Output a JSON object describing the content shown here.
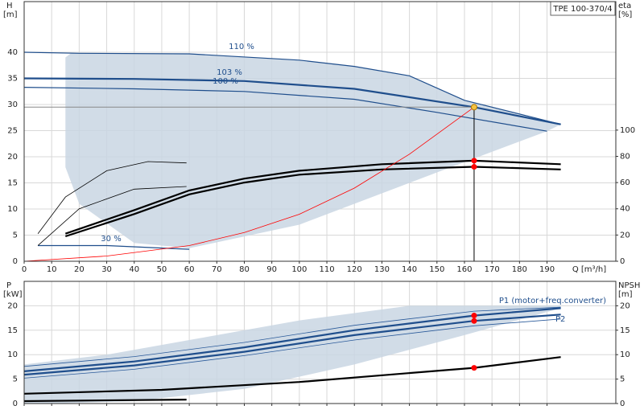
{
  "chart_data": [
    {
      "type": "line",
      "title": "TPE 100-370/4",
      "ylabel": "H",
      "yunit": "[m]",
      "xlabel": "Q [m³/h]",
      "y2label": "eta",
      "y2unit": "[%]",
      "xlim": [
        0,
        215
      ],
      "ylim": [
        0,
        49.7
      ],
      "y2lim": [
        0,
        198
      ],
      "grid": true,
      "duty_guides": true,
      "xticks": [
        0,
        10,
        20,
        30,
        40,
        50,
        60,
        70,
        80,
        90,
        100,
        110,
        120,
        130,
        140,
        150,
        160,
        170,
        180,
        190
      ],
      "yticks": [
        0,
        5,
        10,
        15,
        20,
        25,
        30,
        35,
        40
      ],
      "y2ticks": [
        0,
        20,
        40,
        60,
        80,
        100
      ],
      "series": [
        {
          "fill": true,
          "color": "#c9d6e3",
          "x": [
            17,
            20,
            60,
            100,
            120,
            140,
            160,
            195,
            190,
            150,
            100,
            60,
            40,
            20,
            15,
            15
          ],
          "values": [
            39.8,
            39.8,
            39.7,
            38.5,
            37.3,
            35.5,
            30.8,
            26.2,
            24.9,
            17,
            7,
            2.5,
            3.5,
            11,
            18,
            39
          ]
        },
        {
          "name": "110 %",
          "color": "#1f4e8c",
          "width": 1.2,
          "x": [
            0,
            20,
            60,
            100,
            120,
            140,
            160,
            195
          ],
          "values": [
            40,
            39.8,
            39.7,
            38.5,
            37.3,
            35.5,
            30.8,
            26.2
          ]
        },
        {
          "name": "103 %",
          "color": "#1f4e8c",
          "width": 2.2,
          "x": [
            0,
            40,
            80,
            120,
            163.5,
            195
          ],
          "values": [
            35,
            34.9,
            34.5,
            33,
            29.5,
            26.2
          ]
        },
        {
          "name": "100 %",
          "color": "#1f4e8c",
          "width": 1.2,
          "x": [
            0,
            40,
            80,
            120,
            150,
            190
          ],
          "values": [
            33.3,
            33,
            32.5,
            31,
            28.5,
            24.9
          ]
        },
        {
          "name": "30 %",
          "color": "#1f4e8c",
          "width": 1.2,
          "x": [
            5,
            30,
            60
          ],
          "values": [
            3,
            3,
            2.3
          ]
        },
        {
          "axis": "y2",
          "color": "#000000",
          "width": 2.2,
          "x": [
            15,
            40,
            60,
            80,
            100,
            130,
            163.5,
            195
          ],
          "values": [
            21,
            39,
            54,
            63,
            69,
            74,
            76.7,
            74
          ]
        },
        {
          "axis": "y2",
          "color": "#000000",
          "width": 2.2,
          "x": [
            15,
            40,
            60,
            80,
            100,
            130,
            163.5,
            195
          ],
          "values": [
            19,
            36,
            51,
            60,
            66,
            70,
            72,
            70
          ]
        },
        {
          "axis": "y2",
          "color": "#000000",
          "width": 0.8,
          "x": [
            5,
            15,
            30,
            45,
            59
          ],
          "values": [
            21,
            49,
            69,
            76,
            75
          ]
        },
        {
          "axis": "y2",
          "color": "#000000",
          "width": 0.8,
          "x": [
            5,
            20,
            40,
            59
          ],
          "values": [
            12,
            40,
            55,
            57
          ]
        },
        {
          "color": "#ff0000",
          "width": 0.8,
          "x": [
            0,
            30,
            60,
            80,
            100,
            120,
            140,
            163.5
          ],
          "values": [
            0,
            1,
            3,
            5.5,
            9,
            14,
            20.5,
            29.5
          ]
        }
      ],
      "points": [
        {
          "x": 163.5,
          "y": 29.5,
          "color": "#f5c242"
        },
        {
          "x": 163.5,
          "y": 76.7,
          "axis": "y2",
          "color": "#ff0000"
        },
        {
          "x": 163.5,
          "y": 72,
          "axis": "y2",
          "color": "#ff0000"
        }
      ]
    },
    {
      "type": "line",
      "ylabel": "P",
      "yunit": "[kW]",
      "y2label": "NPSH",
      "y2unit": "[m]",
      "xlim": [
        0,
        215
      ],
      "ylim": [
        0,
        25
      ],
      "y2lim": [
        0,
        25
      ],
      "grid": true,
      "xticks": [
        0,
        10,
        20,
        30,
        40,
        50,
        60,
        70,
        80,
        90,
        100,
        110,
        120,
        130,
        140,
        150,
        160,
        170,
        180,
        190
      ],
      "yticks": [
        0,
        5,
        10,
        15,
        20
      ],
      "y2ticks": [
        0,
        5,
        10,
        15,
        20
      ],
      "series": [
        {
          "fill": true,
          "color": "#c9d6e3",
          "x": [
            0,
            30,
            60,
            100,
            140,
            195,
            195,
            160,
            120,
            80,
            40,
            10,
            0
          ],
          "values": [
            8,
            10,
            13,
            17,
            20,
            20,
            19.5,
            14,
            8,
            3,
            0.5,
            0,
            0
          ]
        },
        {
          "name": "P1 (motor+freq.converter)",
          "color": "#1f4e8c",
          "width": 2.2,
          "x": [
            0,
            40,
            80,
            120,
            163.5,
            195
          ],
          "values": [
            6.6,
            8.6,
            11.5,
            15,
            18,
            19.5
          ]
        },
        {
          "name": "P2",
          "color": "#1f4e8c",
          "width": 2.2,
          "x": [
            0,
            40,
            80,
            120,
            163.5,
            195
          ],
          "values": [
            5.9,
            7.8,
            10.6,
            14,
            16.9,
            18.2
          ]
        },
        {
          "color": "#2a5a9a",
          "width": 0.8,
          "x": [
            0,
            40,
            80,
            120,
            163.5,
            195
          ],
          "values": [
            7.6,
            9.6,
            12.5,
            16,
            18.9,
            19.7
          ]
        },
        {
          "color": "#2a5a9a",
          "width": 0.8,
          "x": [
            0,
            40,
            80,
            120,
            163.5,
            195
          ],
          "values": [
            5.2,
            7,
            9.8,
            13,
            15.9,
            17.3
          ]
        },
        {
          "axis": "y2",
          "color": "#000000",
          "width": 2.2,
          "x": [
            0,
            50,
            100,
            163.5,
            195
          ],
          "values": [
            2,
            2.8,
            4.4,
            7.3,
            9.5
          ]
        },
        {
          "color": "#000000",
          "width": 2.2,
          "x": [
            0,
            59
          ],
          "values": [
            0.5,
            0.8
          ]
        }
      ],
      "points": [
        {
          "x": 163.5,
          "y": 18,
          "color": "#ff0000"
        },
        {
          "x": 163.5,
          "y": 16.9,
          "color": "#ff0000"
        },
        {
          "x": 163.5,
          "y": 7.3,
          "axis": "y2",
          "color": "#ff0000"
        }
      ]
    }
  ]
}
